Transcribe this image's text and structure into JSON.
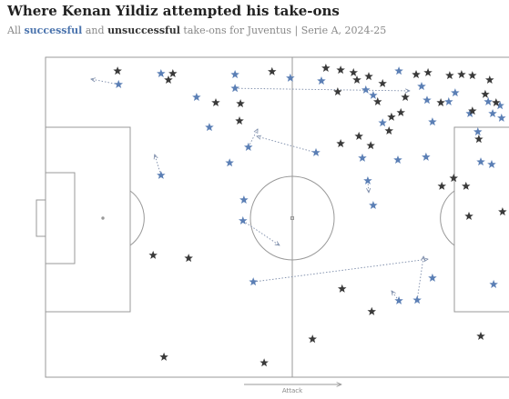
{
  "chart_data": {
    "type": "scatter",
    "title": "Where Kenan Yildiz attempted his take-ons",
    "subtitle": [
      "All ",
      "successful",
      " and ",
      "unsuccessful",
      " take-ons for Juventus | Serie A, 2024-25"
    ],
    "direction_label": "Attack",
    "xlim": [
      0,
      100
    ],
    "ylim": [
      0,
      100
    ],
    "series": [
      {
        "name": "successful",
        "color": "#5b7fb5",
        "x": [
          14.8,
          23.4,
          38.4,
          49.6,
          38.4,
          33.2,
          41.1,
          37.3,
          23.4,
          40.2,
          40.0,
          55.9,
          54.8,
          64.9,
          66.4,
          64.2,
          65.3,
          66.4,
          71.6,
          76.2,
          77.3,
          78.4,
          77.1,
          71.4,
          81.7,
          83.0,
          86.0,
          87.6,
          89.7,
          90.6,
          92.1,
          92.4,
          88.2,
          90.4,
          42.1,
          78.4,
          75.3,
          71.6,
          90.8,
          30.6,
          68.3
        ],
        "y": [
          91.5,
          94.9,
          94.6,
          93.5,
          90.3,
          78.1,
          71.9,
          67.0,
          63.1,
          55.4,
          48.9,
          92.6,
          70.2,
          89.8,
          88.1,
          68.5,
          61.4,
          53.7,
          95.7,
          90.9,
          86.6,
          79.8,
          68.8,
          67.9,
          86.1,
          88.9,
          82.4,
          76.7,
          86.1,
          82.4,
          84.9,
          81.0,
          67.3,
          66.5,
          29.8,
          31.0,
          24.1,
          23.9,
          29.0,
          87.5,
          79.5
        ],
        "x_end": [
          9.2,
          null,
          null,
          null,
          73.8,
          null,
          43.0,
          null,
          22.1,
          null,
          47.4,
          null,
          42.8,
          null,
          null,
          null,
          65.5,
          null,
          null,
          null,
          null,
          null,
          null,
          null,
          null,
          null,
          null,
          null,
          null,
          null,
          null,
          null,
          null,
          null,
          77.5,
          null,
          76.6,
          70.1,
          null,
          null,
          null
        ],
        "y_end": [
          93.2,
          null,
          null,
          null,
          89.5,
          null,
          77.6,
          null,
          69.6,
          null,
          41.2,
          null,
          75.3,
          null,
          null,
          null,
          57.7,
          null,
          null,
          null,
          null,
          null,
          null,
          null,
          null,
          null,
          null,
          null,
          null,
          null,
          null,
          null,
          null,
          null,
          36.9,
          null,
          37.8,
          27.0,
          null,
          null,
          null
        ]
      },
      {
        "name": "unsuccessful",
        "color": "#3a3a3a",
        "x": [
          14.6,
          25.8,
          24.9,
          45.9,
          56.8,
          59.8,
          62.4,
          65.5,
          68.3,
          75.1,
          77.5,
          81.9,
          84.3,
          86.5,
          90.0,
          34.5,
          39.5,
          39.3,
          59.2,
          63.1,
          70.1,
          72.0,
          72.9,
          67.3,
          80.1,
          86.5,
          87.8,
          89.1,
          91.3,
          59.8,
          63.5,
          69.6,
          65.9,
          82.7,
          80.3,
          85.2,
          92.6,
          85.8,
          21.8,
          29.0,
          60.1,
          66.1,
          54.1,
          88.2,
          24.0,
          44.3
        ],
        "y": [
          95.7,
          94.9,
          92.9,
          95.5,
          96.6,
          96.0,
          95.2,
          94.0,
          91.8,
          94.6,
          95.2,
          94.3,
          94.6,
          94.3,
          92.9,
          85.8,
          85.5,
          80.1,
          89.2,
          92.9,
          81.3,
          82.7,
          87.5,
          86.1,
          85.8,
          83.2,
          74.4,
          88.4,
          85.8,
          73.0,
          75.3,
          77.0,
          72.4,
          62.2,
          59.7,
          59.7,
          51.7,
          50.3,
          38.1,
          37.2,
          27.6,
          20.5,
          11.9,
          12.8,
          6.3,
          4.5
        ]
      }
    ]
  }
}
